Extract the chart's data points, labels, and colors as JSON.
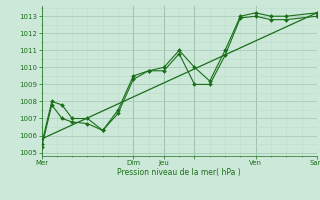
{
  "title": "Pression niveau de la mer( hPa )",
  "bg_color": "#cce8d8",
  "grid_color_major": "#aaccbb",
  "grid_color_minor": "#bbddcc",
  "line_color": "#1a6e1a",
  "xlim": [
    0,
    216
  ],
  "ylim": [
    1004.8,
    1013.6
  ],
  "yticks": [
    1005,
    1006,
    1007,
    1008,
    1009,
    1010,
    1011,
    1012,
    1013
  ],
  "x_tick_pos": [
    0,
    72,
    96,
    120,
    168,
    216
  ],
  "x_tick_labels": [
    "Mer",
    "Dim",
    "Jeu",
    "",
    "Ven",
    "Sam"
  ],
  "x_minor_spacing": 12,
  "trend": {
    "x": [
      0,
      216
    ],
    "y": [
      1005.8,
      1013.2
    ]
  },
  "series1": {
    "x": [
      0,
      8,
      16,
      24,
      36,
      48,
      60,
      72,
      84,
      96,
      108,
      120,
      132,
      144,
      156,
      168,
      180,
      192,
      216
    ],
    "y": [
      1005.5,
      1008.0,
      1007.8,
      1007.0,
      1007.0,
      1006.3,
      1007.5,
      1009.5,
      1009.8,
      1010.0,
      1011.0,
      1010.0,
      1009.2,
      1011.0,
      1013.0,
      1013.2,
      1013.0,
      1013.0,
      1013.2
    ]
  },
  "series2": {
    "x": [
      0,
      8,
      16,
      24,
      36,
      48,
      60,
      72,
      84,
      96,
      108,
      120,
      132,
      144,
      156,
      168,
      180,
      192,
      216
    ],
    "y": [
      1005.3,
      1007.8,
      1007.0,
      1006.8,
      1006.7,
      1006.3,
      1007.3,
      1009.3,
      1009.8,
      1009.8,
      1010.8,
      1009.0,
      1009.0,
      1010.7,
      1012.9,
      1013.0,
      1012.8,
      1012.8,
      1013.0
    ]
  }
}
